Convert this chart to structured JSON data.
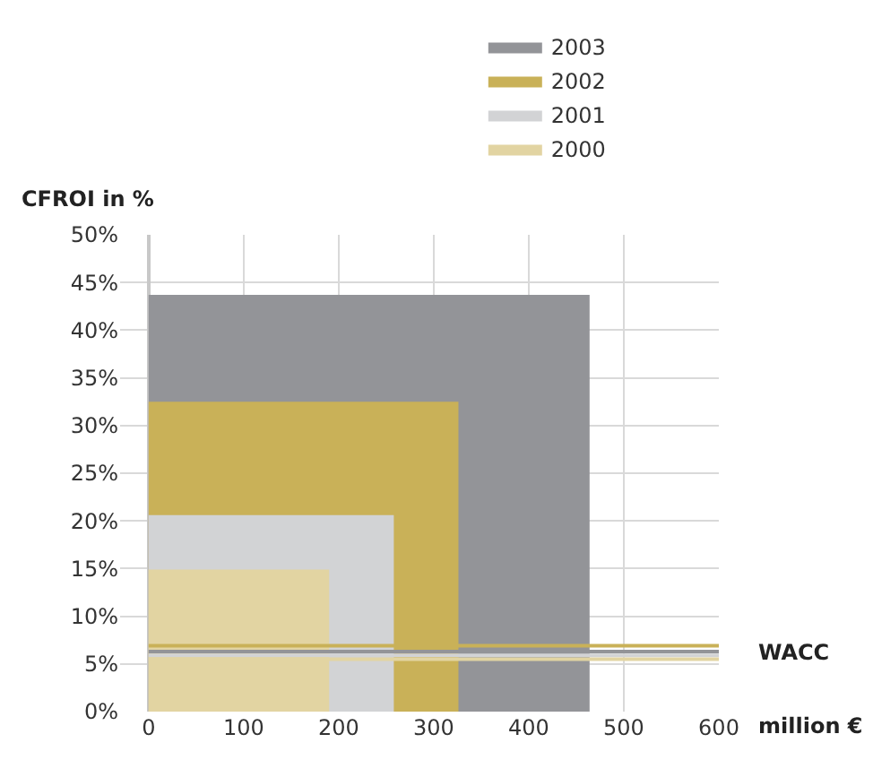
{
  "chart_data": {
    "type": "area",
    "ylabel": "CFROI in %",
    "xlabel": "million €",
    "series": [
      {
        "name": "2003",
        "color": "#939498",
        "x": [
          0,
          464
        ],
        "values": [
          43.7,
          43.7
        ]
      },
      {
        "name": "2002",
        "color": "#c9b158",
        "x": [
          0,
          326
        ],
        "values": [
          32.5,
          32.5
        ]
      },
      {
        "name": "2001",
        "color": "#d2d3d5",
        "x": [
          0,
          258
        ],
        "values": [
          20.6,
          20.6
        ]
      },
      {
        "name": "2000",
        "color": "#e2d4a2",
        "x": [
          0,
          190
        ],
        "values": [
          14.9,
          14.9
        ]
      }
    ],
    "ref_lines": [
      {
        "axis": "y",
        "value": 6.9,
        "label": "WACC",
        "color": "#c9b158"
      },
      {
        "axis": "y",
        "value": 6.3,
        "label": null,
        "color": "#939498"
      },
      {
        "axis": "y",
        "value": 5.9,
        "label": null,
        "color": "#d2d3d5"
      },
      {
        "axis": "y",
        "value": 5.5,
        "label": null,
        "color": "#e2d4a2"
      }
    ],
    "xlim": [
      -30,
      600
    ],
    "xticks": [
      0,
      100,
      200,
      300,
      400,
      500,
      600
    ],
    "ylim": [
      0,
      50
    ],
    "yticks": [
      {
        "value": 0,
        "label": "0%"
      },
      {
        "value": 5,
        "label": "5%"
      },
      {
        "value": 10,
        "label": "10%"
      },
      {
        "value": 15,
        "label": "15%"
      },
      {
        "value": 20,
        "label": "20%"
      },
      {
        "value": 25,
        "label": "25%"
      },
      {
        "value": 30,
        "label": "30%"
      },
      {
        "value": 35,
        "label": "35%"
      },
      {
        "value": 40,
        "label": "40%"
      },
      {
        "value": 45,
        "label": "45%"
      },
      {
        "value": 50,
        "label": "50%"
      }
    ],
    "grid": true,
    "legend": "top"
  }
}
